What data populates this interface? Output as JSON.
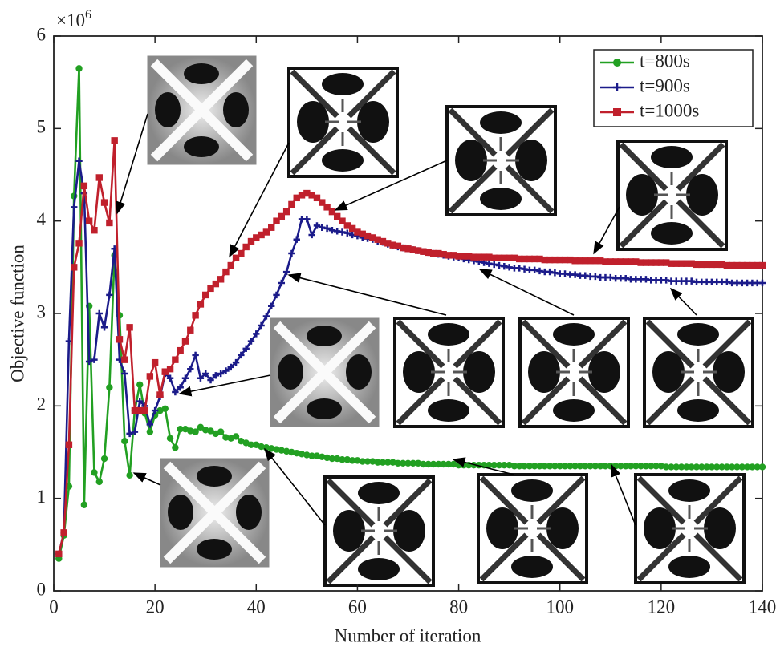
{
  "chart_data": {
    "type": "line",
    "xlabel": "Number of iteration",
    "ylabel": "Objective function",
    "y_multiplier": {
      "base": "×10",
      "exponent": "6"
    },
    "x": [
      1,
      2,
      3,
      4,
      5,
      6,
      7,
      8,
      9,
      10,
      11,
      12,
      13,
      14,
      15,
      16,
      17,
      18,
      19,
      20,
      21,
      22,
      23,
      24,
      25,
      26,
      27,
      28,
      29,
      30,
      31,
      32,
      33,
      34,
      35,
      36,
      37,
      38,
      39,
      40,
      41,
      42,
      43,
      44,
      45,
      46,
      47,
      48,
      49,
      50,
      51,
      52,
      53,
      54,
      55,
      56,
      57,
      58,
      59,
      60,
      61,
      62,
      63,
      64,
      65,
      66,
      67,
      68,
      69,
      70,
      71,
      72,
      73,
      74,
      75,
      76,
      77,
      78,
      79,
      80,
      81,
      82,
      83,
      84,
      85,
      86,
      87,
      88,
      89,
      90,
      91,
      92,
      93,
      94,
      95,
      96,
      97,
      98,
      99,
      100,
      101,
      102,
      103,
      104,
      105,
      106,
      107,
      108,
      109,
      110,
      111,
      112,
      113,
      114,
      115,
      116,
      117,
      118,
      119,
      120,
      121,
      122,
      123,
      124,
      125,
      126,
      127,
      128,
      129,
      130,
      131,
      132,
      133,
      134,
      135,
      136,
      137,
      138,
      139,
      140
    ],
    "series": [
      {
        "name": "t=800s",
        "color": "#22a022",
        "marker": "circle",
        "values": [
          0.35,
          0.6,
          1.13,
          4.27,
          5.65,
          0.93,
          3.08,
          1.28,
          1.18,
          1.43,
          2.2,
          3.63,
          2.98,
          1.62,
          1.25,
          1.95,
          2.23,
          1.92,
          1.72,
          1.9,
          1.95,
          1.97,
          1.65,
          1.55,
          1.75,
          1.75,
          1.73,
          1.72,
          1.77,
          1.74,
          1.73,
          1.7,
          1.72,
          1.66,
          1.65,
          1.67,
          1.62,
          1.6,
          1.58,
          1.58,
          1.56,
          1.55,
          1.54,
          1.53,
          1.52,
          1.51,
          1.5,
          1.49,
          1.48,
          1.47,
          1.46,
          1.46,
          1.45,
          1.44,
          1.43,
          1.43,
          1.42,
          1.42,
          1.41,
          1.41,
          1.4,
          1.4,
          1.4,
          1.39,
          1.39,
          1.39,
          1.39,
          1.38,
          1.38,
          1.38,
          1.38,
          1.38,
          1.37,
          1.37,
          1.37,
          1.37,
          1.37,
          1.37,
          1.37,
          1.36,
          1.36,
          1.36,
          1.36,
          1.36,
          1.36,
          1.36,
          1.36,
          1.36,
          1.36,
          1.36,
          1.35,
          1.35,
          1.35,
          1.35,
          1.35,
          1.35,
          1.35,
          1.35,
          1.35,
          1.35,
          1.35,
          1.35,
          1.35,
          1.35,
          1.35,
          1.35,
          1.35,
          1.35,
          1.35,
          1.35,
          1.35,
          1.35,
          1.35,
          1.35,
          1.35,
          1.35,
          1.35,
          1.35,
          1.35,
          1.35,
          1.34,
          1.34,
          1.34,
          1.34,
          1.34,
          1.34,
          1.34,
          1.34,
          1.34,
          1.34,
          1.34,
          1.34,
          1.34,
          1.34,
          1.34,
          1.34,
          1.34,
          1.34,
          1.34,
          1.34
        ]
      },
      {
        "name": "t=900s",
        "color": "#1b1b8a",
        "marker": "plus",
        "values": [
          0.4,
          0.63,
          2.7,
          4.15,
          4.65,
          4.3,
          2.48,
          2.5,
          3.0,
          2.85,
          3.2,
          3.7,
          2.5,
          2.35,
          1.7,
          1.72,
          2.05,
          2.0,
          1.8,
          1.95,
          2.1,
          2.35,
          2.3,
          2.15,
          2.2,
          2.3,
          2.4,
          2.55,
          2.3,
          2.35,
          2.28,
          2.33,
          2.35,
          2.38,
          2.42,
          2.47,
          2.55,
          2.62,
          2.7,
          2.78,
          2.87,
          2.97,
          3.08,
          3.2,
          3.33,
          3.45,
          3.65,
          3.8,
          4.02,
          4.02,
          3.85,
          3.95,
          3.93,
          3.92,
          3.9,
          3.89,
          3.88,
          3.87,
          3.85,
          3.84,
          3.82,
          3.81,
          3.8,
          3.78,
          3.77,
          3.75,
          3.74,
          3.72,
          3.71,
          3.7,
          3.69,
          3.68,
          3.67,
          3.66,
          3.65,
          3.64,
          3.63,
          3.62,
          3.61,
          3.6,
          3.59,
          3.58,
          3.57,
          3.56,
          3.55,
          3.54,
          3.53,
          3.52,
          3.51,
          3.5,
          3.49,
          3.49,
          3.48,
          3.47,
          3.47,
          3.46,
          3.45,
          3.45,
          3.44,
          3.43,
          3.43,
          3.42,
          3.42,
          3.41,
          3.41,
          3.4,
          3.4,
          3.39,
          3.39,
          3.39,
          3.38,
          3.38,
          3.38,
          3.37,
          3.37,
          3.37,
          3.37,
          3.36,
          3.36,
          3.36,
          3.36,
          3.35,
          3.35,
          3.35,
          3.35,
          3.35,
          3.34,
          3.34,
          3.34,
          3.34,
          3.34,
          3.34,
          3.34,
          3.33,
          3.33,
          3.33,
          3.33,
          3.33,
          3.33,
          3.33
        ]
      },
      {
        "name": "t=1000s",
        "color": "#c0202c",
        "marker": "square",
        "values": [
          0.4,
          0.63,
          1.58,
          3.5,
          3.76,
          4.38,
          4.0,
          3.9,
          4.47,
          4.2,
          3.98,
          4.87,
          2.72,
          2.5,
          2.85,
          1.95,
          1.95,
          1.95,
          2.32,
          2.47,
          2.12,
          2.37,
          2.4,
          2.5,
          2.6,
          2.7,
          2.82,
          2.98,
          3.1,
          3.2,
          3.27,
          3.32,
          3.37,
          3.45,
          3.52,
          3.6,
          3.65,
          3.72,
          3.78,
          3.82,
          3.85,
          3.88,
          3.93,
          4.0,
          4.05,
          4.1,
          4.18,
          4.25,
          4.28,
          4.3,
          4.28,
          4.25,
          4.2,
          4.15,
          4.1,
          4.05,
          4.0,
          3.95,
          3.92,
          3.88,
          3.86,
          3.84,
          3.82,
          3.8,
          3.78,
          3.76,
          3.74,
          3.73,
          3.71,
          3.7,
          3.69,
          3.68,
          3.67,
          3.66,
          3.65,
          3.65,
          3.64,
          3.63,
          3.63,
          3.62,
          3.62,
          3.62,
          3.61,
          3.61,
          3.61,
          3.61,
          3.6,
          3.6,
          3.6,
          3.6,
          3.6,
          3.59,
          3.59,
          3.59,
          3.59,
          3.59,
          3.58,
          3.58,
          3.58,
          3.58,
          3.58,
          3.58,
          3.57,
          3.57,
          3.57,
          3.57,
          3.57,
          3.57,
          3.56,
          3.56,
          3.56,
          3.56,
          3.56,
          3.56,
          3.56,
          3.55,
          3.55,
          3.55,
          3.55,
          3.55,
          3.55,
          3.54,
          3.54,
          3.54,
          3.54,
          3.54,
          3.53,
          3.53,
          3.53,
          3.53,
          3.53,
          3.53,
          3.52,
          3.52,
          3.52,
          3.52,
          3.52,
          3.52,
          3.52,
          3.52
        ]
      }
    ],
    "xlim": [
      0,
      140
    ],
    "xticks": [
      0,
      20,
      40,
      60,
      80,
      100,
      120,
      140
    ],
    "ylim": [
      0,
      6
    ],
    "yticks": [
      0,
      1,
      2,
      3,
      4,
      5,
      6
    ],
    "grid": false,
    "legend": "upper right"
  }
}
